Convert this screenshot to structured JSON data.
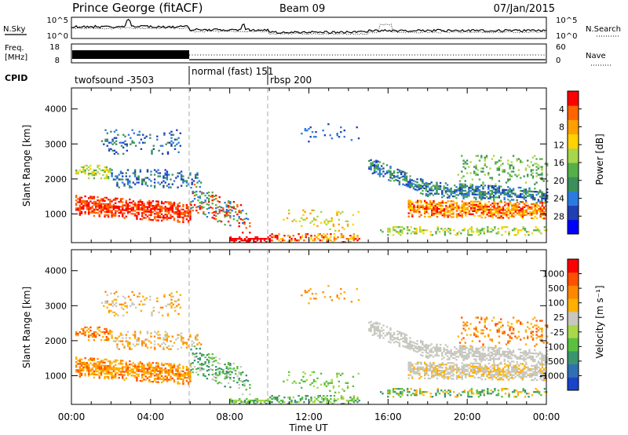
{
  "header": {
    "station": "Prince George (fitACF)",
    "beam": "Beam 09",
    "date": "07/Jan/2015"
  },
  "top_panels": {
    "nsky_label": "N.Sky",
    "nsearch_label": "N.Search",
    "nsky_ticks": [
      "10^5",
      "10^0"
    ],
    "nsky_right_ticks": [
      "10^5",
      "10^0"
    ],
    "freq_label_line1": "Freq.",
    "freq_label_line2": "[MHz]",
    "freq_ticks": [
      "18",
      "8"
    ],
    "nave_label": "Nave",
    "nave_ticks": [
      "60",
      "0"
    ],
    "cpid_label": "CPID",
    "cpid_segments": [
      {
        "label": "twofsound -3503",
        "start_hour": 0,
        "end_hour": 6
      },
      {
        "label": "normal (fast) 151",
        "start_hour": 6,
        "end_hour": 10
      },
      {
        "label": "rbsp 200",
        "start_hour": 10,
        "end_hour": 24
      }
    ]
  },
  "chart_data": [
    {
      "type": "heatmap",
      "name": "power",
      "ylabel": "Slant Range [km]",
      "yticks": [
        1000,
        2000,
        3000,
        4000
      ],
      "ylim": [
        180,
        4600
      ],
      "x_ticks": [
        "00:00",
        "04:00",
        "08:00",
        "12:00",
        "16:00",
        "20:00",
        "00:00"
      ],
      "xlim_hours": [
        0,
        24
      ],
      "colorbar": {
        "label": "Power [dB]",
        "ticks": [
          "4",
          "8",
          "12",
          "16",
          "20",
          "24",
          "28"
        ],
        "colors": [
          "#0000ff",
          "#1f3fb2",
          "#2a7ae0",
          "#3b8f5a",
          "#55b04a",
          "#a8d64a",
          "#ffd200",
          "#ffa000",
          "#ff6400",
          "#ff0000"
        ]
      }
    },
    {
      "type": "heatmap",
      "name": "velocity",
      "ylabel": "Slant Range [km]",
      "yticks": [
        1000,
        2000,
        3000,
        4000
      ],
      "ylim": [
        180,
        4600
      ],
      "x_ticks": [
        "00:00",
        "04:00",
        "08:00",
        "12:00",
        "16:00",
        "20:00",
        "00:00"
      ],
      "xlabel": "Time UT",
      "xlim_hours": [
        0,
        24
      ],
      "colorbar": {
        "label": "Velocity [m s⁻¹]",
        "ticks": [
          "1000",
          "500",
          "100",
          "25",
          "-25",
          "-100",
          "-500",
          "-1000"
        ],
        "colors": [
          "#1a44c8",
          "#2f6fb4",
          "#3a9470",
          "#5ac040",
          "#a8d84a",
          "#c8c8c0",
          "#ffb000",
          "#ff8800",
          "#ff5000",
          "#ff0000"
        ]
      }
    }
  ]
}
